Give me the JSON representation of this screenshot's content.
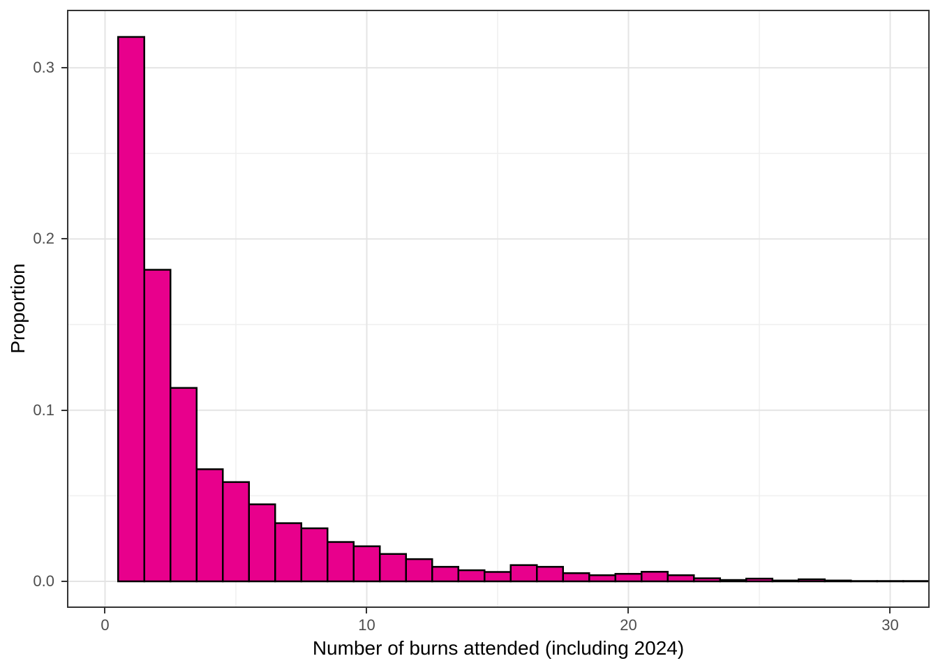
{
  "chart_data": {
    "type": "bar",
    "subtype": "histogram",
    "title": "",
    "xlabel": "Number of burns attended (including 2024)",
    "ylabel": "Proportion",
    "bin_width": 1,
    "bin_centers": [
      1,
      2,
      3,
      4,
      5,
      6,
      7,
      8,
      9,
      10,
      11,
      12,
      13,
      14,
      15,
      16,
      17,
      18,
      19,
      20,
      21,
      22,
      23,
      24,
      25,
      26,
      27,
      28,
      29,
      30,
      31
    ],
    "values": [
      0.318,
      0.182,
      0.113,
      0.0655,
      0.058,
      0.045,
      0.034,
      0.031,
      0.023,
      0.0205,
      0.016,
      0.013,
      0.0085,
      0.0065,
      0.0055,
      0.0095,
      0.0085,
      0.0048,
      0.0036,
      0.0044,
      0.0056,
      0.0036,
      0.0018,
      0.0008,
      0.0016,
      0.0005,
      0.0012,
      0.0005,
      0.0002,
      0.0002,
      0.0002
    ],
    "x_ticks": {
      "values": [
        0,
        10,
        20,
        30
      ],
      "labels": [
        "0",
        "10",
        "20",
        "30"
      ]
    },
    "y_ticks": {
      "values": [
        0,
        0.1,
        0.2,
        0.3
      ],
      "labels": [
        "0.0",
        "0.1",
        "0.2",
        "0.3"
      ]
    },
    "x_minor_ticks": [
      5,
      15,
      25
    ],
    "y_minor_ticks": [
      0.05,
      0.15,
      0.25
    ],
    "xlim": [
      -1.4533,
      31.5067
    ],
    "ylim": [
      -0.01549,
      0.33387
    ],
    "grid": true,
    "legend": "none",
    "colors": {
      "bar_fill": "#E8008C",
      "bar_stroke": "#000000",
      "grid_major": "#E4E4E4",
      "grid_minor": "#EFEFEF",
      "panel_border": "#333333",
      "tick_mark": "#333333",
      "tick_label": "#4D4D4D",
      "axis_title": "#000000",
      "panel_background": "#FFFFFF"
    }
  }
}
